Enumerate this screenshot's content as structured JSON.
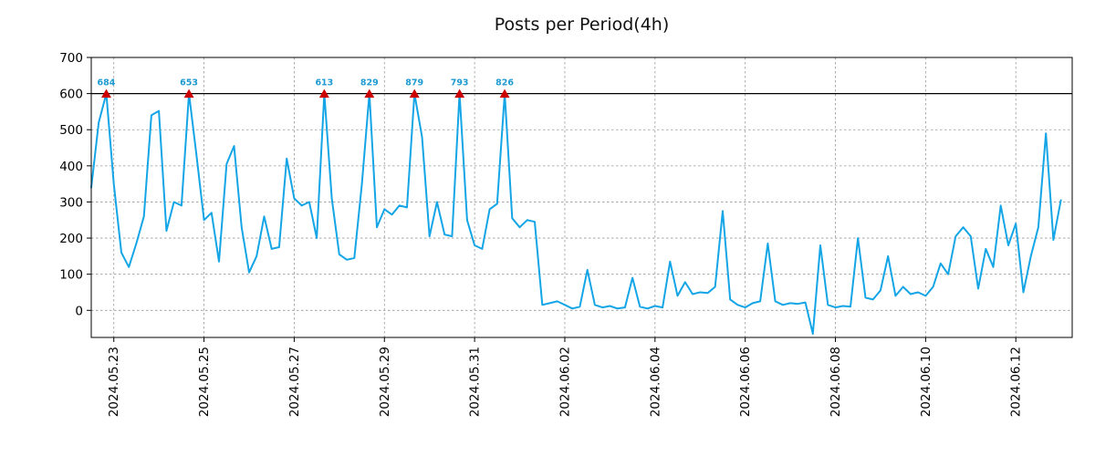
{
  "title": "Posts per Period(4h)",
  "chart_data": {
    "type": "line",
    "title": "Posts per Period(4h)",
    "period_hours": 4,
    "x_axis": {
      "tick_labels": [
        "2024.05.23",
        "2024.05.25",
        "2024.05.27",
        "2024.05.29",
        "2024.05.31",
        "2024.06.02",
        "2024.06.04",
        "2024.06.06",
        "2024.06.08",
        "2024.06.10",
        "2024.06.12"
      ],
      "tick_indices": [
        3,
        15,
        27,
        39,
        51,
        63,
        75,
        87,
        99,
        111,
        123
      ]
    },
    "y_axis": {
      "ticks": [
        0,
        100,
        200,
        300,
        400,
        500,
        600,
        700
      ],
      "ylim": [
        -75,
        700
      ]
    },
    "clip_level": 600,
    "grid": true,
    "legend": false,
    "values": [
      340,
      520,
      684,
      350,
      160,
      120,
      185,
      260,
      540,
      552,
      220,
      300,
      290,
      653,
      430,
      250,
      270,
      135,
      405,
      455,
      230,
      105,
      150,
      260,
      170,
      175,
      420,
      310,
      290,
      300,
      200,
      613,
      310,
      155,
      140,
      145,
      350,
      829,
      230,
      280,
      265,
      290,
      285,
      879,
      480,
      205,
      300,
      210,
      205,
      793,
      250,
      180,
      170,
      280,
      295,
      826,
      255,
      230,
      250,
      245,
      15,
      20,
      25,
      15,
      5,
      10,
      112,
      15,
      8,
      12,
      5,
      8,
      90,
      10,
      5,
      12,
      8,
      135,
      40,
      78,
      45,
      50,
      48,
      65,
      275,
      30,
      15,
      8,
      20,
      25,
      185,
      25,
      15,
      20,
      18,
      22,
      -65,
      180,
      15,
      8,
      12,
      10,
      200,
      35,
      30,
      55,
      150,
      40,
      65,
      45,
      50,
      40,
      65,
      130,
      100,
      205,
      230,
      205,
      60,
      170,
      120,
      290,
      180,
      240,
      50,
      150,
      230,
      490,
      195,
      305
    ],
    "peak_markers": [
      {
        "index": 2,
        "value": 684
      },
      {
        "index": 13,
        "value": 653
      },
      {
        "index": 31,
        "value": 613
      },
      {
        "index": 37,
        "value": 829
      },
      {
        "index": 43,
        "value": 879
      },
      {
        "index": 49,
        "value": 793
      },
      {
        "index": 55,
        "value": 826
      }
    ],
    "colors": {
      "line": "#14a5e6",
      "marker": "#cc0000",
      "marker_label": "#1d9ad1",
      "grid": "#999999",
      "clip_line": "#000000",
      "axis": "#000000"
    }
  }
}
